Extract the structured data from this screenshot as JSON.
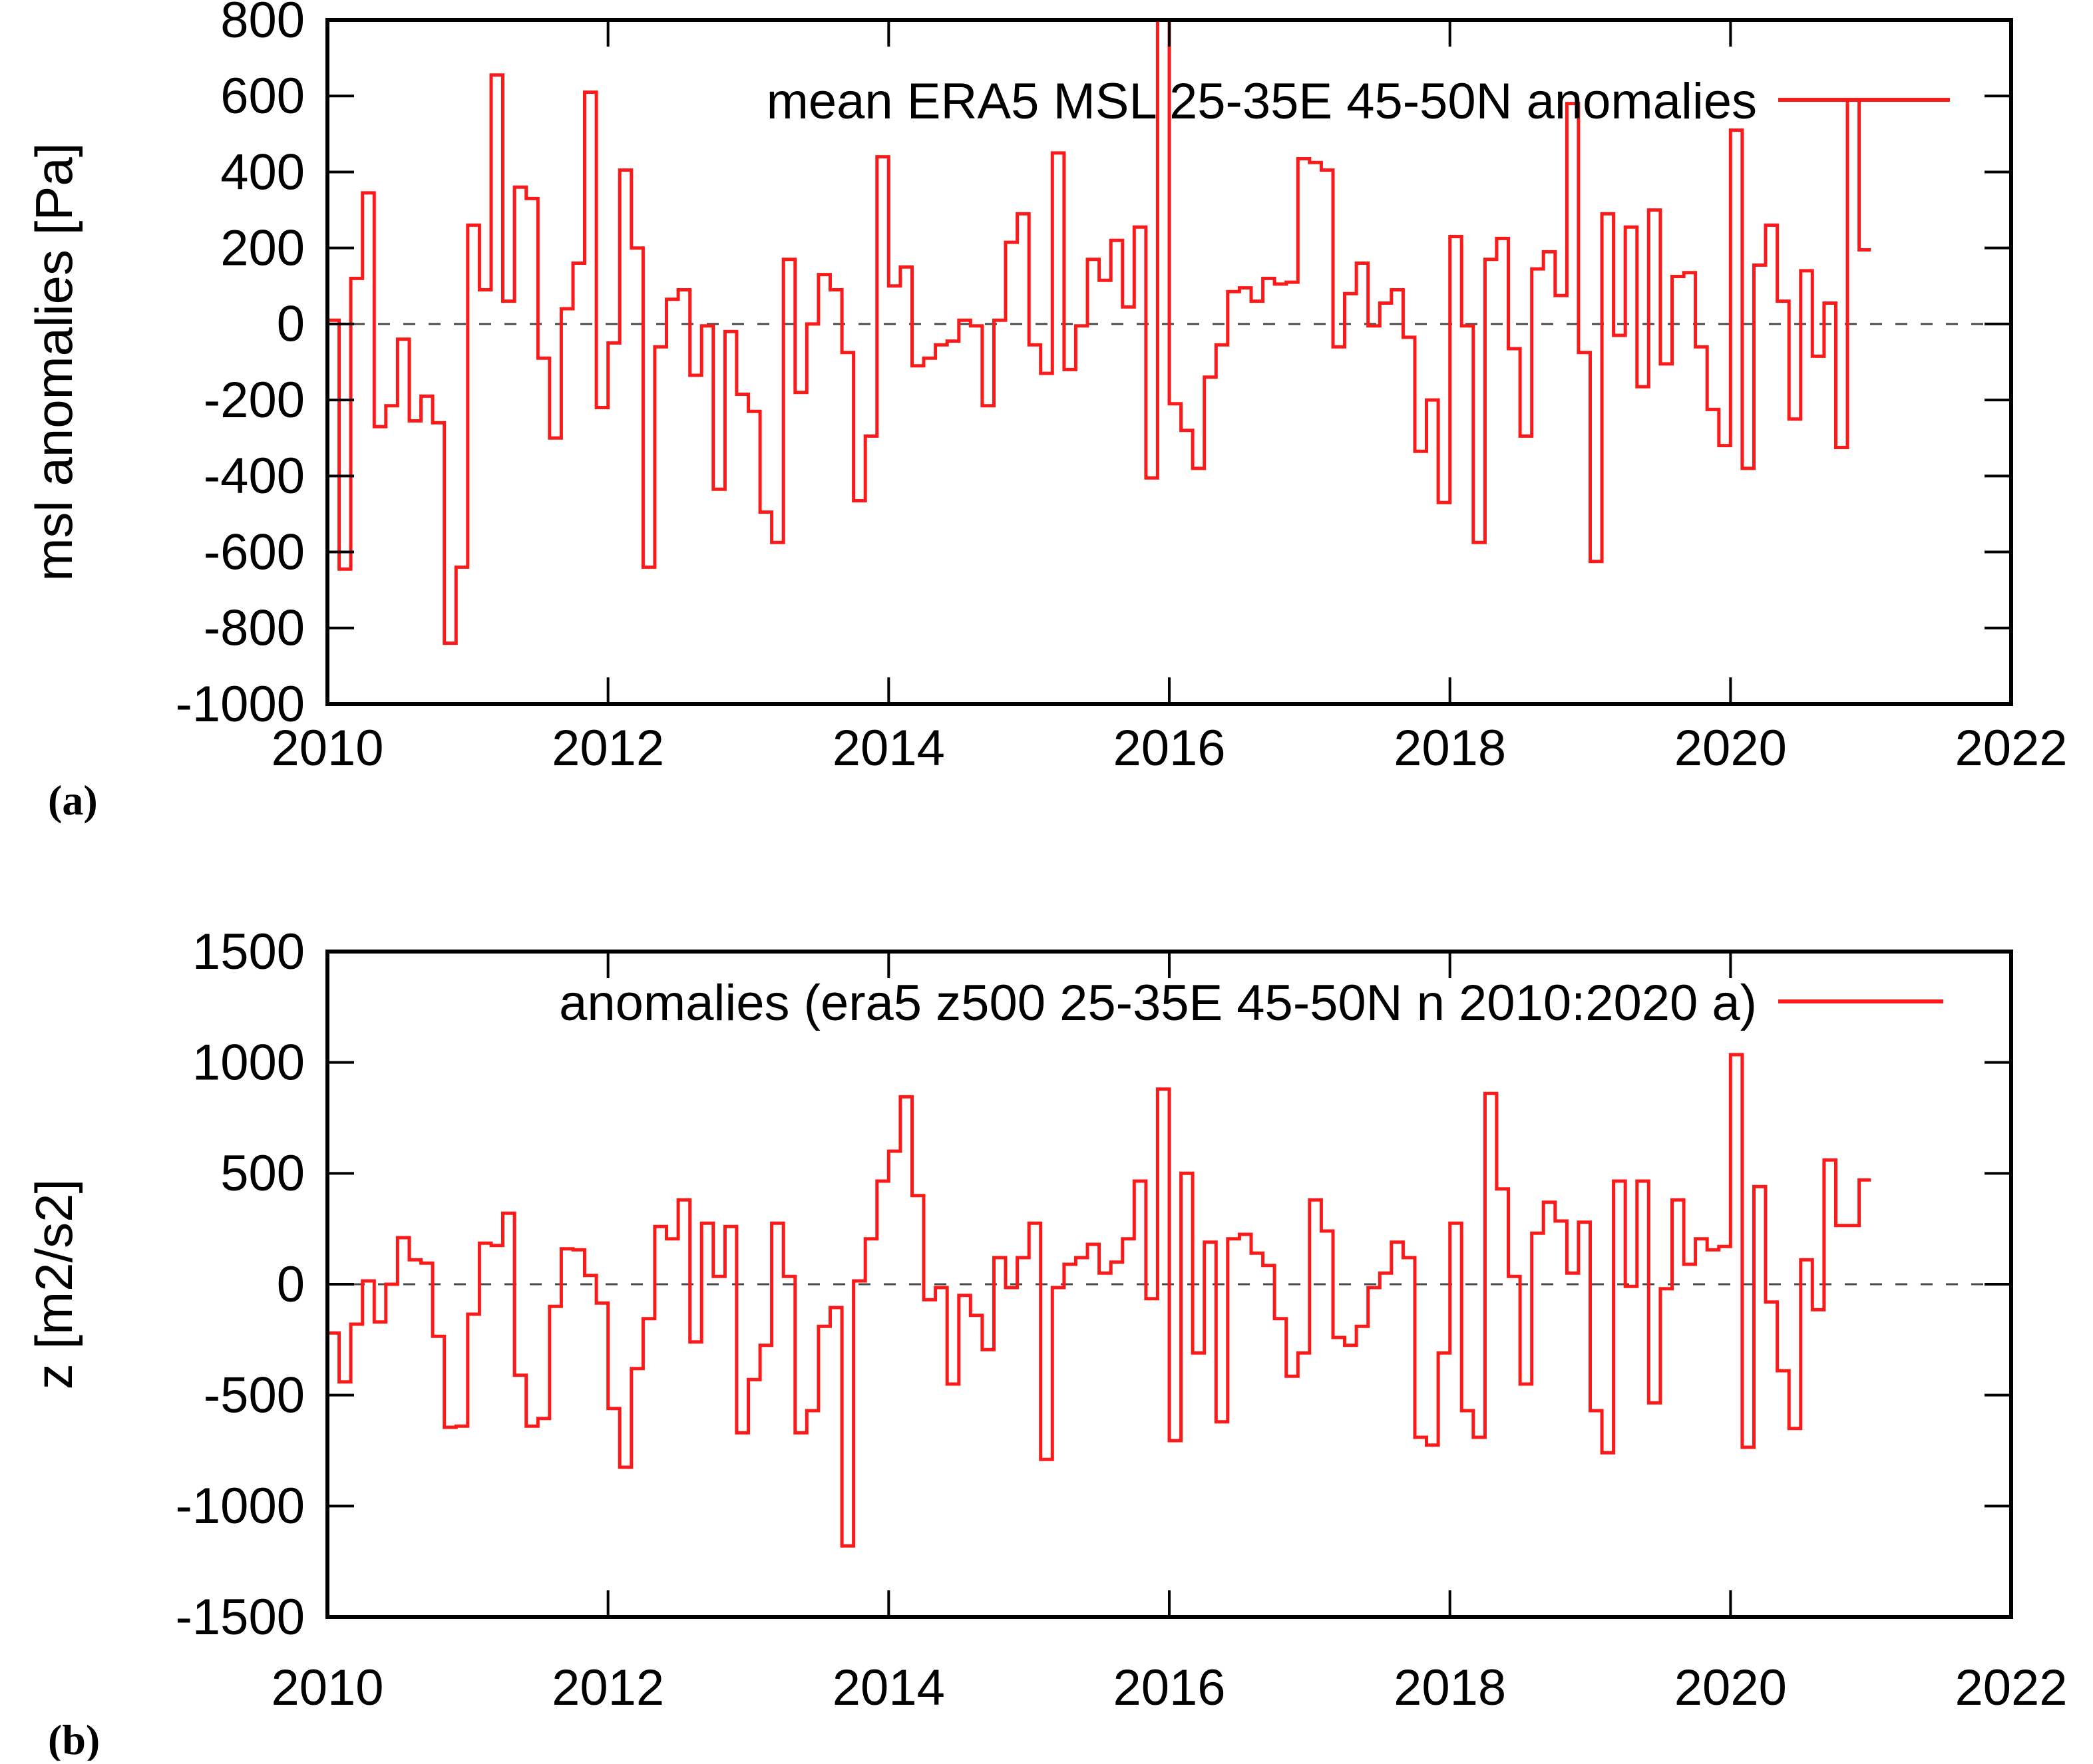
{
  "page": {
    "background": "#ffffff"
  },
  "colors": {
    "series_red": "#fb1a1a",
    "axis_black": "#000000",
    "zero_line_gray": "#4a4a4a"
  },
  "chart_data": [
    {
      "id": "msl",
      "type": "line",
      "line_style": "steps",
      "panel_label": "(a)",
      "legend_label": "mean ERA5 MSL 25-35E 45-50N anomalies",
      "legend_position": "top-right-inside",
      "ylabel": "msl anomalies [Pa]",
      "xlabel": "",
      "xlim": [
        2010,
        2022
      ],
      "ylim": [
        -1000,
        800
      ],
      "yticks": [
        "800",
        "600",
        "400",
        "200",
        "0",
        "-200",
        "-400",
        "-600",
        "-800",
        "-1000"
      ],
      "ytick_values": [
        800,
        600,
        400,
        200,
        0,
        -200,
        -400,
        -600,
        -800,
        -1000
      ],
      "xticks": [
        "2010",
        "2012",
        "2014",
        "2016",
        "2018",
        "2020",
        "2022"
      ],
      "xtick_values": [
        2010,
        2012,
        2014,
        2016,
        2018,
        2020,
        2022
      ],
      "grid": false,
      "zero_line_dashed": true,
      "x_start": 2010.0,
      "x_step": "monthly",
      "values": [
        10,
        -645,
        120,
        345,
        -270,
        -215,
        -40,
        -255,
        -190,
        -260,
        -840,
        -640,
        260,
        90,
        655,
        60,
        360,
        330,
        -90,
        -300,
        40,
        160,
        610,
        -220,
        -50,
        405,
        200,
        -640,
        -60,
        65,
        90,
        -135,
        -5,
        -435,
        -20,
        -185,
        -230,
        -495,
        -575,
        170,
        -180,
        0,
        130,
        90,
        -75,
        -465,
        -295,
        440,
        100,
        150,
        -110,
        -90,
        -55,
        -45,
        10,
        -5,
        -215,
        10,
        215,
        290,
        -55,
        -130,
        450,
        -120,
        -5,
        170,
        115,
        220,
        45,
        255,
        -405,
        810,
        -210,
        -280,
        -380,
        -140,
        -55,
        85,
        95,
        60,
        120,
        105,
        110,
        435,
        425,
        405,
        -60,
        80,
        160,
        -5,
        55,
        90,
        -35,
        -335,
        -200,
        -470,
        230,
        -5,
        -575,
        170,
        225,
        -65,
        -295,
        145,
        190,
        75,
        580,
        -75,
        -625,
        290,
        -30,
        255,
        -165,
        300,
        -105,
        125,
        135,
        -60,
        -225,
        -320,
        510,
        -380,
        155,
        260,
        60,
        -250,
        140,
        -85,
        55,
        -325,
        590,
        195
      ]
    },
    {
      "id": "z500",
      "type": "line",
      "line_style": "steps",
      "panel_label": "(b)",
      "legend_label": "anomalies (era5 z500 25-35E 45-50N n 2010:2020 a)",
      "legend_position": "top-right-inside",
      "ylabel": "z [m2/s2]",
      "xlabel": "",
      "xlim": [
        2010,
        2022
      ],
      "ylim": [
        -1500,
        1500
      ],
      "yticks": [
        "1500",
        "1000",
        "500",
        "0",
        "-500",
        "-1000",
        "-1500"
      ],
      "ytick_values": [
        1500,
        1000,
        500,
        0,
        -500,
        -1000,
        -1500
      ],
      "xticks": [
        "2010",
        "2012",
        "2014",
        "2016",
        "2018",
        "2020",
        "2022"
      ],
      "xtick_values": [
        2010,
        2012,
        2014,
        2016,
        2018,
        2020,
        2022
      ],
      "grid": false,
      "zero_line_dashed": true,
      "x_start": 2010.0,
      "x_step": "monthly",
      "values": [
        -220,
        -440,
        -180,
        15,
        -170,
        0,
        210,
        110,
        95,
        -235,
        -645,
        -640,
        -135,
        185,
        175,
        320,
        -410,
        -640,
        -605,
        -100,
        160,
        155,
        40,
        -85,
        -560,
        -825,
        -380,
        -155,
        260,
        205,
        380,
        -260,
        275,
        35,
        260,
        -670,
        -430,
        -275,
        275,
        35,
        -670,
        -570,
        -190,
        -105,
        -1180,
        15,
        205,
        465,
        600,
        845,
        400,
        -70,
        -15,
        -450,
        -50,
        -140,
        -295,
        120,
        -15,
        120,
        275,
        -790,
        -15,
        90,
        120,
        180,
        50,
        100,
        205,
        465,
        -65,
        880,
        -705,
        500,
        -310,
        190,
        -620,
        205,
        225,
        140,
        85,
        -155,
        -415,
        -310,
        380,
        240,
        -240,
        -275,
        -190,
        -15,
        50,
        190,
        120,
        -690,
        -725,
        -310,
        275,
        -570,
        -690,
        860,
        430,
        35,
        -450,
        230,
        370,
        285,
        50,
        280,
        -570,
        -760,
        465,
        -10,
        465,
        -535,
        -20,
        380,
        90,
        205,
        155,
        170,
        1035,
        -735,
        440,
        -80,
        -390,
        -650,
        110,
        -115,
        560,
        265,
        265,
        470
      ]
    }
  ]
}
